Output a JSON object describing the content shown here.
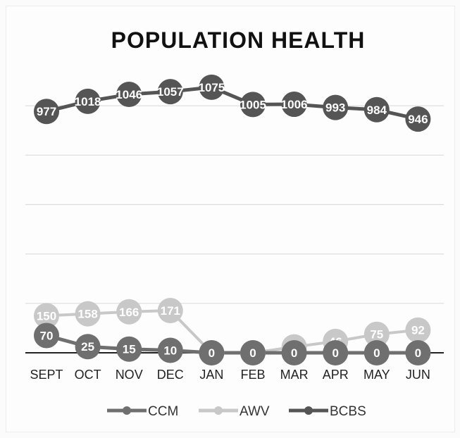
{
  "chart_data": {
    "type": "line",
    "title": "POPULATION HEALTH",
    "xlabel": "",
    "ylabel": "",
    "categories": [
      "SEPT",
      "OCT",
      "NOV",
      "DEC",
      "JAN",
      "FEB",
      "MAR",
      "APR",
      "MAY",
      "JUN"
    ],
    "series": [
      {
        "name": "CCM",
        "values": [
          70,
          25,
          15,
          10,
          0,
          0,
          0,
          0,
          0,
          0
        ],
        "color": "#6f6f6f"
      },
      {
        "name": "AWV",
        "values": [
          150,
          158,
          166,
          171,
          0,
          0,
          24,
          46,
          75,
          92
        ],
        "color": "#c8c8c8"
      },
      {
        "name": "BCBS",
        "values": [
          977,
          1018,
          1046,
          1057,
          1075,
          1005,
          1006,
          993,
          984,
          946
        ],
        "color": "#555555"
      }
    ],
    "data_labels": {
      "CCM": [
        "70",
        "25",
        "15",
        "10",
        "0",
        "0",
        "0",
        "0",
        "0",
        "0"
      ],
      "AWV": [
        "150",
        "158",
        "166",
        "171",
        "0",
        "0",
        "24",
        "46",
        "75",
        "92"
      ],
      "BCBS": [
        "977",
        "1018",
        "1046",
        "1057",
        "1075",
        "1005",
        "1006",
        "993",
        "984",
        "946"
      ]
    },
    "ylim": [
      0,
      1200
    ],
    "grid": true,
    "legend_position": "bottom"
  }
}
